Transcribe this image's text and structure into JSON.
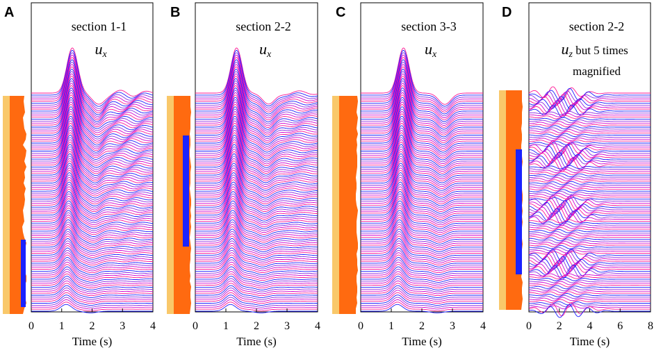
{
  "figure": {
    "colors": {
      "trace_colors": [
        "#ff1493",
        "#1a1aff",
        "#8a2be2",
        "#d100d1"
      ],
      "column_yellow": "#f9c86a",
      "column_orange": "#ff6a10",
      "column_blue": "#1a22ff"
    }
  },
  "chart_data": [
    {
      "type": "line",
      "panel_letter": "A",
      "title": "section 1-1",
      "component": "u",
      "component_sub": "x",
      "component_note": "",
      "xlabel": "Time (s)",
      "xlim": [
        0,
        4
      ],
      "xticks": [
        "0",
        "1",
        "2",
        "3",
        "4"
      ],
      "trace_count": 110,
      "pulse_peak_time_s": 1.35,
      "trough_time_s": 2.2,
      "max_relative_amplitude": 1.0
    },
    {
      "type": "line",
      "panel_letter": "B",
      "title": "section 2-2",
      "component": "u",
      "component_sub": "x",
      "component_note": "",
      "xlabel": "Time (s)",
      "xlim": [
        0,
        4
      ],
      "xticks": [
        "0",
        "1",
        "2",
        "3",
        "4"
      ],
      "trace_count": 110,
      "pulse_peak_time_s": 1.35,
      "trough_time_s": 2.4,
      "max_relative_amplitude": 1.0
    },
    {
      "type": "line",
      "panel_letter": "C",
      "title": "section 3-3",
      "component": "u",
      "component_sub": "x",
      "component_note": "",
      "xlabel": "Time (s)",
      "xlim": [
        0,
        4
      ],
      "xticks": [
        "0",
        "1",
        "2",
        "3",
        "4"
      ],
      "trace_count": 110,
      "pulse_peak_time_s": 1.4,
      "trough_time_s": 2.75,
      "max_relative_amplitude": 1.0
    },
    {
      "type": "line",
      "panel_letter": "D",
      "title": "section 2-2",
      "component": "u",
      "component_sub": "z",
      "component_note": " but 5 times",
      "component_note_2": "magnified",
      "xlabel": "Time (s)",
      "xlim": [
        0,
        8
      ],
      "xticks": [
        "0",
        "2",
        "4",
        "6",
        "8"
      ],
      "trace_count": 110,
      "pulse_peak_time_s": 2.0,
      "trough_time_s": 3.0,
      "max_relative_amplitude": 0.15
    }
  ]
}
